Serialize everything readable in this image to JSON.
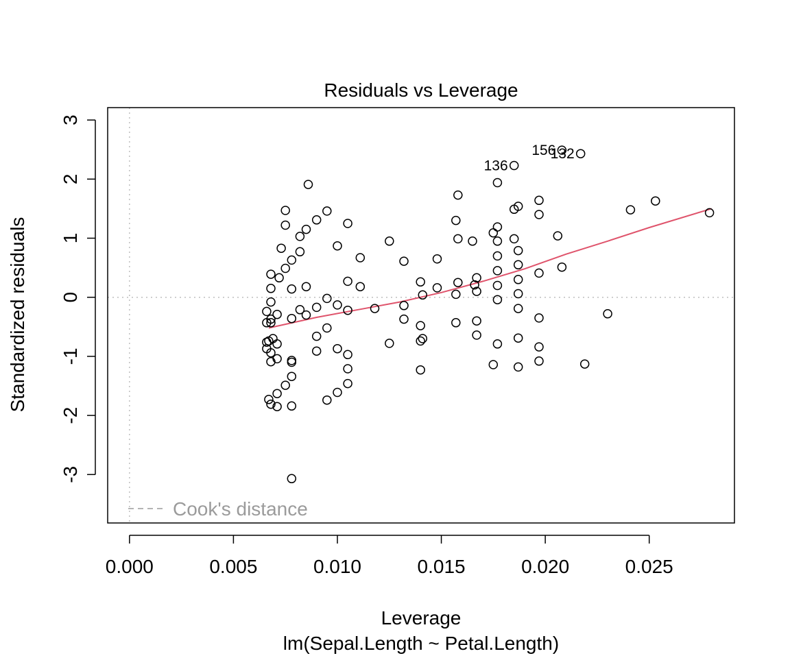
{
  "chart_data": {
    "type": "scatter",
    "title": "Residuals vs Leverage",
    "xlabel": "Leverage",
    "subtitle": "lm(Sepal.Length ~ Petal.Length)",
    "ylabel": "Standardized residuals",
    "xlim": [
      -0.00105,
      0.0291
    ],
    "ylim": [
      -3.82,
      3.21
    ],
    "x_ticks": [
      0.0,
      0.005,
      0.01,
      0.015,
      0.02,
      0.025
    ],
    "x_tick_labels": [
      "0.000",
      "0.005",
      "0.010",
      "0.015",
      "0.020",
      "0.025"
    ],
    "y_ticks": [
      -3,
      -2,
      -1,
      0,
      1,
      2,
      3
    ],
    "y_tick_labels": [
      "-3",
      "-2",
      "-1",
      "0",
      "1",
      "2",
      "3"
    ],
    "grid": false,
    "reference_lines": {
      "x": 0,
      "y": 0,
      "style": "dotted",
      "color": "#bebebe"
    },
    "legend": {
      "label": "Cook's distance",
      "placement": "bottom-left",
      "line_style": "dashed",
      "color": "#9b9b9b"
    },
    "colors": {
      "points": "#000000",
      "smooth": "#df536b",
      "reference": "#bebebe",
      "legend": "#9b9b9b"
    },
    "smooth_line": {
      "x": [
        0.0067,
        0.009,
        0.011,
        0.013,
        0.015,
        0.017,
        0.019,
        0.021,
        0.023,
        0.025,
        0.028
      ],
      "y": [
        -0.52,
        -0.34,
        -0.21,
        -0.08,
        0.08,
        0.27,
        0.48,
        0.73,
        0.95,
        1.18,
        1.5
      ]
    },
    "labeled_points": [
      {
        "label": "136",
        "x": 0.0185,
        "y": 2.23
      },
      {
        "label": "156",
        "x": 0.0208,
        "y": 2.49
      },
      {
        "label": "132",
        "x": 0.0217,
        "y": 2.43
      }
    ],
    "points": [
      [
        0.0078,
        -3.07
      ],
      [
        0.0067,
        -1.73
      ],
      [
        0.0068,
        -1.81
      ],
      [
        0.0071,
        -1.85
      ],
      [
        0.0078,
        -1.84
      ],
      [
        0.0071,
        -1.63
      ],
      [
        0.0075,
        -1.49
      ],
      [
        0.0078,
        -1.34
      ],
      [
        0.0068,
        -1.09
      ],
      [
        0.0071,
        -1.04
      ],
      [
        0.0078,
        -1.07
      ],
      [
        0.0078,
        -1.1
      ],
      [
        0.0068,
        -0.94
      ],
      [
        0.0066,
        -0.87
      ],
      [
        0.0071,
        -0.79
      ],
      [
        0.0066,
        -0.76
      ],
      [
        0.0069,
        -0.7
      ],
      [
        0.0067,
        -0.74
      ],
      [
        0.0068,
        -0.43
      ],
      [
        0.0068,
        -0.37
      ],
      [
        0.0066,
        -0.43
      ],
      [
        0.0066,
        -0.24
      ],
      [
        0.0071,
        -0.29
      ],
      [
        0.0068,
        -0.08
      ],
      [
        0.0068,
        0.15
      ],
      [
        0.0068,
        0.39
      ],
      [
        0.0072,
        0.33
      ],
      [
        0.0078,
        0.14
      ],
      [
        0.0078,
        -0.36
      ],
      [
        0.0082,
        -0.21
      ],
      [
        0.0085,
        -0.3
      ],
      [
        0.0085,
        0.18
      ],
      [
        0.0075,
        0.49
      ],
      [
        0.0078,
        0.63
      ],
      [
        0.0082,
        0.77
      ],
      [
        0.0073,
        0.83
      ],
      [
        0.0082,
        1.03
      ],
      [
        0.0085,
        1.15
      ],
      [
        0.0075,
        1.22
      ],
      [
        0.0075,
        1.47
      ],
      [
        0.009,
        1.31
      ],
      [
        0.0095,
        1.46
      ],
      [
        0.0086,
        1.91
      ],
      [
        0.009,
        -0.66
      ],
      [
        0.009,
        -0.91
      ],
      [
        0.0095,
        -0.52
      ],
      [
        0.009,
        -0.17
      ],
      [
        0.0095,
        -0.02
      ],
      [
        0.01,
        -0.13
      ],
      [
        0.01,
        -0.87
      ],
      [
        0.0095,
        -1.74
      ],
      [
        0.01,
        -1.61
      ],
      [
        0.0105,
        -1.46
      ],
      [
        0.0105,
        -1.21
      ],
      [
        0.0105,
        -0.97
      ],
      [
        0.0105,
        -0.22
      ],
      [
        0.0105,
        0.27
      ],
      [
        0.0111,
        0.18
      ],
      [
        0.01,
        0.87
      ],
      [
        0.0105,
        1.25
      ],
      [
        0.0111,
        0.67
      ],
      [
        0.0118,
        -0.19
      ],
      [
        0.0125,
        -0.78
      ],
      [
        0.0125,
        0.95
      ],
      [
        0.0132,
        -0.37
      ],
      [
        0.0132,
        -0.14
      ],
      [
        0.0132,
        0.61
      ],
      [
        0.014,
        0.26
      ],
      [
        0.0141,
        0.04
      ],
      [
        0.014,
        -0.48
      ],
      [
        0.014,
        -0.74
      ],
      [
        0.0141,
        -0.7
      ],
      [
        0.014,
        -1.23
      ],
      [
        0.0148,
        0.16
      ],
      [
        0.0148,
        0.65
      ],
      [
        0.0157,
        0.05
      ],
      [
        0.0158,
        0.25
      ],
      [
        0.0157,
        -0.43
      ],
      [
        0.0157,
        1.3
      ],
      [
        0.0158,
        0.99
      ],
      [
        0.0158,
        1.73
      ],
      [
        0.0165,
        0.95
      ],
      [
        0.0166,
        0.21
      ],
      [
        0.0167,
        0.33
      ],
      [
        0.0167,
        0.1
      ],
      [
        0.0167,
        -0.4
      ],
      [
        0.0167,
        -0.64
      ],
      [
        0.0175,
        -1.14
      ],
      [
        0.0177,
        -0.79
      ],
      [
        0.0177,
        -0.04
      ],
      [
        0.0177,
        0.2
      ],
      [
        0.0177,
        0.45
      ],
      [
        0.0177,
        0.7
      ],
      [
        0.0177,
        0.95
      ],
      [
        0.0177,
        1.19
      ],
      [
        0.0175,
        1.09
      ],
      [
        0.0177,
        1.94
      ],
      [
        0.0185,
        1.49
      ],
      [
        0.0187,
        1.54
      ],
      [
        0.0185,
        0.99
      ],
      [
        0.0187,
        0.79
      ],
      [
        0.0187,
        0.55
      ],
      [
        0.0187,
        0.3
      ],
      [
        0.0187,
        0.06
      ],
      [
        0.0187,
        -0.19
      ],
      [
        0.0187,
        -0.69
      ],
      [
        0.0187,
        -1.18
      ],
      [
        0.0185,
        2.23
      ],
      [
        0.0197,
        1.64
      ],
      [
        0.0197,
        1.4
      ],
      [
        0.0197,
        0.41
      ],
      [
        0.0197,
        -0.35
      ],
      [
        0.0197,
        -0.84
      ],
      [
        0.0197,
        -1.08
      ],
      [
        0.0206,
        1.04
      ],
      [
        0.0208,
        0.51
      ],
      [
        0.0208,
        2.49
      ],
      [
        0.0217,
        2.43
      ],
      [
        0.0219,
        -1.13
      ],
      [
        0.023,
        -0.28
      ],
      [
        0.0241,
        1.48
      ],
      [
        0.0253,
        1.63
      ],
      [
        0.0279,
        1.43
      ]
    ]
  }
}
